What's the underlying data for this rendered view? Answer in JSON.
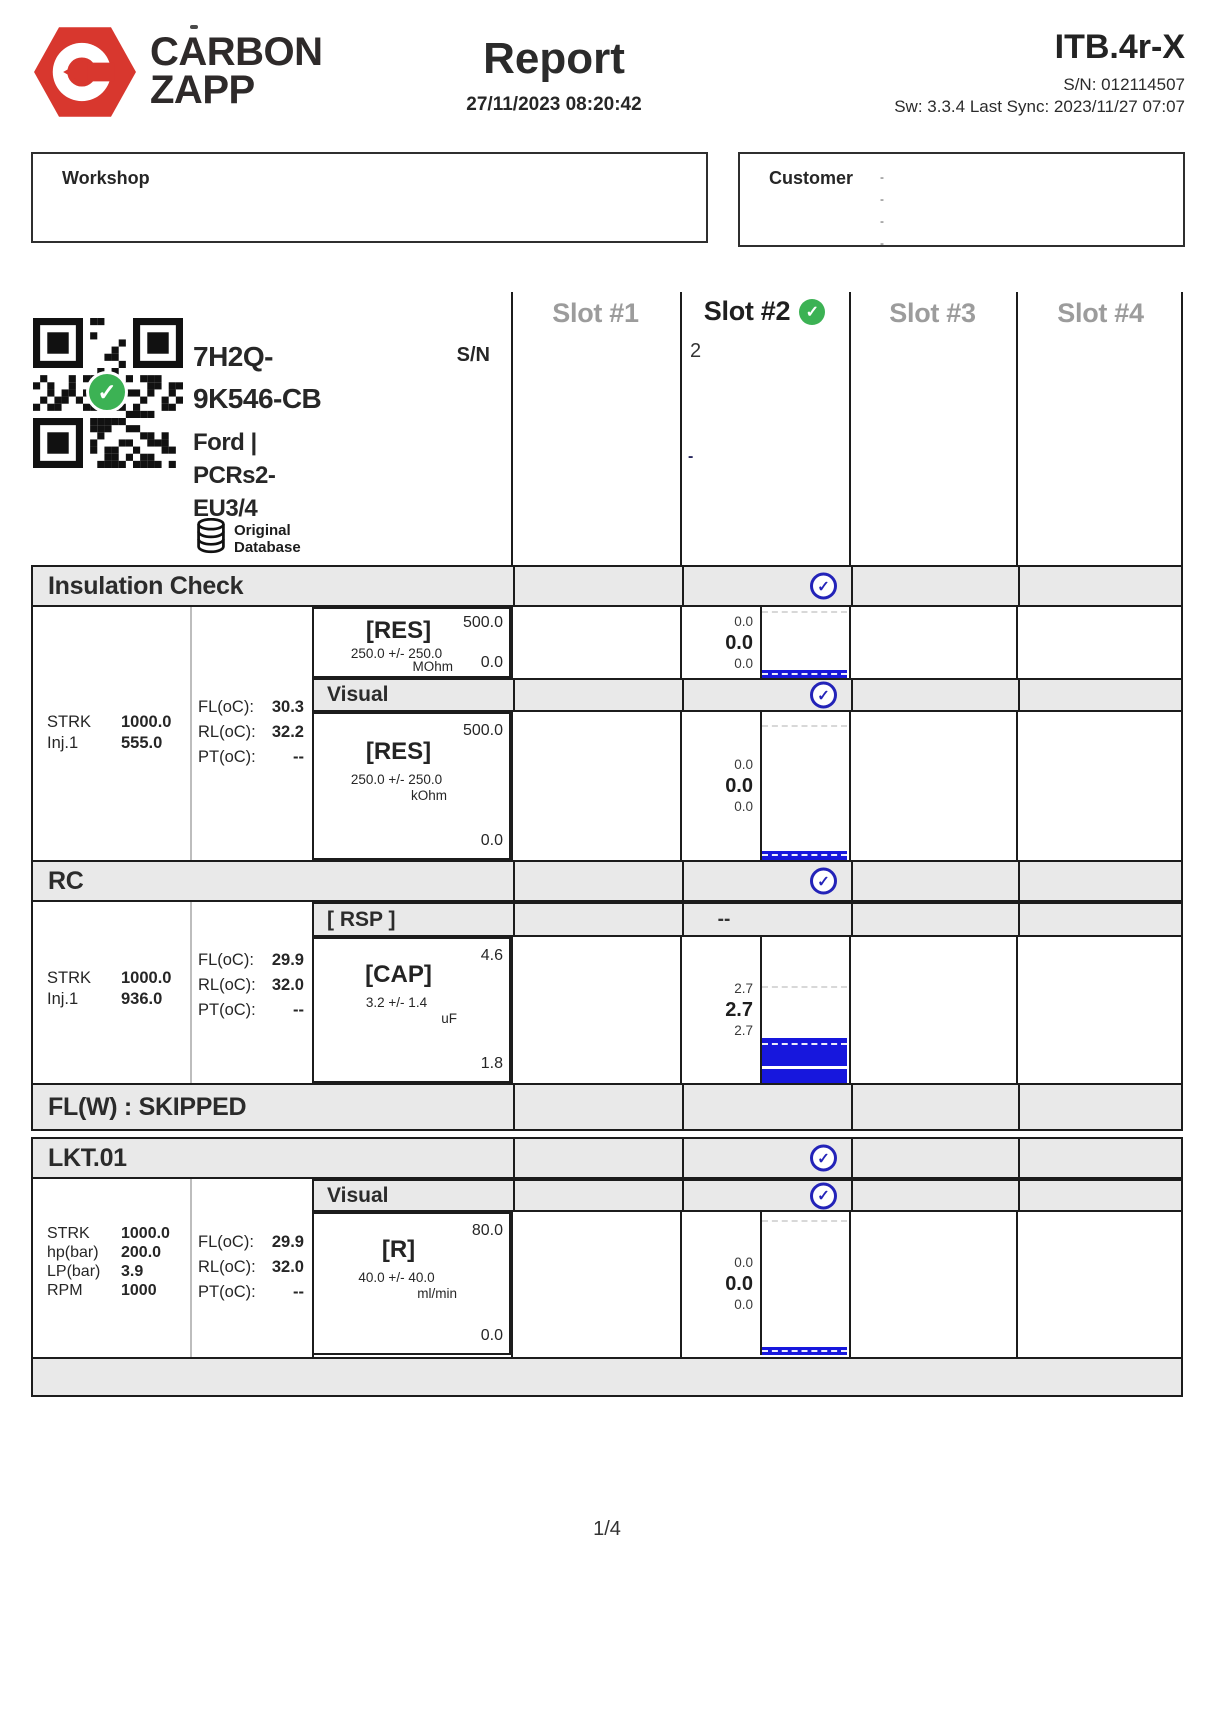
{
  "header": {
    "brand1": "CARBON",
    "brand2": "ZAPP",
    "title": "Report",
    "datetime": "27/11/2023 08:20:42",
    "device": "ITB.4r-X",
    "serial": "S/N: 012114507",
    "sw_line": "Sw: 3.3.4 Last Sync: 2023/11/27 07:07"
  },
  "workshop": {
    "label": "Workshop"
  },
  "customer": {
    "label": "Customer",
    "empty_lines": [
      "-",
      "-",
      "-",
      "-"
    ]
  },
  "part": {
    "pn_line1": "7H2Q-",
    "pn_line2": "9K546-CB",
    "brand_line": "Ford |",
    "type_line1": "PCRs2-",
    "type_line2": "EU3/4",
    "db_line1": "Original",
    "db_line2": "Database",
    "sn_label": "S/N"
  },
  "slots": {
    "labels": [
      "Slot #1",
      "Slot #2",
      "Slot #3",
      "Slot #4"
    ],
    "slot2_id": "2",
    "slot2_note": "-"
  },
  "insulation": {
    "title": "Insulation Check",
    "params": [
      [
        "STRK",
        "1000.0"
      ],
      [
        "Inj.1",
        "555.0"
      ]
    ],
    "temps": [
      [
        "FL(oC):",
        "30.3"
      ],
      [
        "RL(oC):",
        "32.2"
      ],
      [
        "PT(oC):",
        "--"
      ]
    ],
    "res1": {
      "name": "[RES]",
      "max": "500.0",
      "tol": "250.0 +/- 250.0",
      "unit": "MOhm",
      "min": "0.0",
      "r_hi": "0.0",
      "r_avg": "0.0",
      "r_lo": "0.0"
    },
    "visual_label": "Visual",
    "res2": {
      "name": "[RES]",
      "max": "500.0",
      "tol": "250.0 +/- 250.0",
      "unit": "kOhm",
      "min": "0.0",
      "r_hi": "0.0",
      "r_avg": "0.0",
      "r_lo": "0.0"
    }
  },
  "rc": {
    "title": "RC",
    "rsp_label": "[ RSP ]",
    "rsp_value": "--",
    "params": [
      [
        "STRK",
        "1000.0"
      ],
      [
        "Inj.1",
        "936.0"
      ]
    ],
    "temps": [
      [
        "FL(oC):",
        "29.9"
      ],
      [
        "RL(oC):",
        "32.0"
      ],
      [
        "PT(oC):",
        "--"
      ]
    ],
    "cap": {
      "name": "[CAP]",
      "max": "4.6",
      "tol": "3.2 +/- 1.4",
      "unit": "uF",
      "min": "1.8",
      "r_hi": "2.7",
      "r_avg": "2.7",
      "r_lo": "2.7"
    }
  },
  "flw": {
    "title": "FL(W) : SKIPPED"
  },
  "lkt": {
    "title": "LKT.01",
    "visual_label": "Visual",
    "params": [
      [
        "STRK",
        "1000.0"
      ],
      [
        "hp(bar)",
        "200.0"
      ],
      [
        "LP(bar)",
        "3.9"
      ],
      [
        "RPM",
        "1000"
      ]
    ],
    "temps": [
      [
        "FL(oC):",
        "29.9"
      ],
      [
        "RL(oC):",
        "32.0"
      ],
      [
        "PT(oC):",
        "--"
      ]
    ],
    "r": {
      "name": "[R]",
      "max": "80.0",
      "tol": "40.0 +/- 40.0",
      "unit": "ml/min",
      "min": "0.0",
      "r_hi": "0.0",
      "r_avg": "0.0",
      "r_lo": "0.0"
    }
  },
  "footer": {
    "page": "1/4"
  },
  "colors": {
    "logo_red": "#d8372e",
    "result_bar_blue": "#1717dd",
    "pass_check_blue": "#2323b8",
    "pass_check_green": "#3cb254",
    "section_bar_gray": "#e9e9e9"
  }
}
